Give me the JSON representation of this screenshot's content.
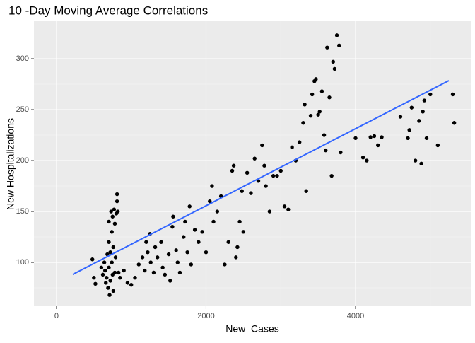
{
  "chart_data": {
    "type": "scatter",
    "title": "10 -Day Moving Average Correlations",
    "x_label": "New  Cases",
    "y_label": "New Hospitalizations",
    "xlim": [
      -302,
      5541
    ],
    "ylim": [
      57,
      336.8
    ],
    "xticks": [
      0,
      2000,
      4000
    ],
    "yticks": [
      100,
      150,
      200,
      250,
      300
    ],
    "grid": true,
    "color": "#000000",
    "x": [
      480,
      500,
      520,
      600,
      620,
      640,
      650,
      660,
      670,
      680,
      690,
      700,
      700,
      700,
      710,
      720,
      720,
      730,
      740,
      740,
      750,
      750,
      760,
      760,
      770,
      780,
      780,
      790,
      800,
      810,
      810,
      820,
      830,
      850,
      900,
      950,
      1000,
      1050,
      1100,
      1150,
      1180,
      1200,
      1220,
      1250,
      1260,
      1300,
      1320,
      1350,
      1400,
      1420,
      1450,
      1500,
      1520,
      1550,
      1560,
      1600,
      1620,
      1650,
      1700,
      1720,
      1750,
      1780,
      1800,
      1850,
      1900,
      1950,
      2000,
      2050,
      2080,
      2100,
      2150,
      2200,
      2250,
      2300,
      2350,
      2370,
      2400,
      2420,
      2450,
      2480,
      2500,
      2550,
      2600,
      2650,
      2700,
      2750,
      2780,
      2800,
      2850,
      2900,
      2950,
      3000,
      3050,
      3100,
      3150,
      3200,
      3250,
      3300,
      3320,
      3340,
      3400,
      3420,
      3450,
      3470,
      3500,
      3520,
      3550,
      3580,
      3600,
      3620,
      3650,
      3680,
      3700,
      3720,
      3750,
      3780,
      3800,
      4000,
      4100,
      4150,
      4200,
      4250,
      4300,
      4350,
      4600,
      4700,
      4720,
      4750,
      4800,
      4850,
      4880,
      4900,
      4920,
      4950,
      5000,
      5100,
      5300,
      5320
    ],
    "y": [
      103,
      85,
      79,
      95,
      88,
      100,
      92,
      80,
      85,
      108,
      75,
      95,
      120,
      140,
      68,
      82,
      110,
      150,
      130,
      100,
      88,
      145,
      72,
      115,
      152,
      138,
      90,
      105,
      148,
      160,
      167,
      150,
      90,
      85,
      92,
      80,
      78,
      85,
      98,
      105,
      92,
      120,
      110,
      128,
      100,
      90,
      115,
      105,
      120,
      95,
      88,
      108,
      82,
      135,
      145,
      112,
      100,
      90,
      125,
      140,
      110,
      155,
      98,
      132,
      120,
      130,
      110,
      160,
      175,
      140,
      150,
      165,
      98,
      120,
      190,
      195,
      105,
      115,
      140,
      170,
      130,
      188,
      168,
      202,
      180,
      215,
      195,
      175,
      150,
      185,
      185,
      190,
      155,
      152,
      213,
      200,
      218,
      237,
      255,
      170,
      244,
      265,
      278,
      280,
      245,
      248,
      268,
      225,
      210,
      311,
      262,
      185,
      297,
      290,
      323,
      313,
      208,
      222,
      203,
      200,
      223,
      224,
      215,
      223,
      243,
      222,
      230,
      252,
      200,
      239,
      197,
      248,
      259,
      222,
      265,
      215,
      265,
      237
    ],
    "fit": {
      "color": "#3366FF",
      "x": [
        217,
        5248
      ],
      "y": [
        88.2,
        278.5
      ]
    }
  }
}
